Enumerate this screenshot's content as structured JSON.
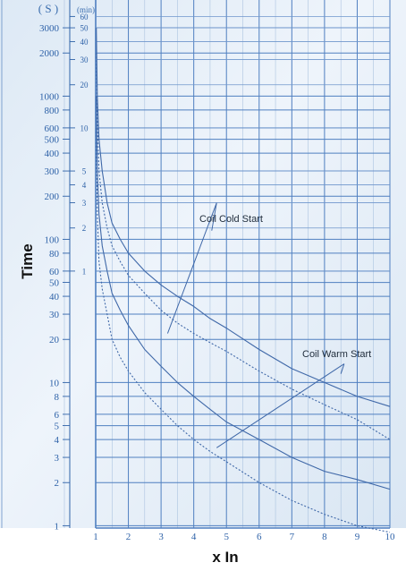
{
  "chart_data": {
    "type": "line",
    "title": "",
    "xlabel": "x In",
    "ylabel": "Time",
    "y_scale": "log",
    "xlim": [
      1,
      10
    ],
    "ylim": [
      0.9,
      5000
    ],
    "grid": true,
    "x_ticks": [
      "1",
      "2",
      "3",
      "4",
      "5",
      "6",
      "7",
      "8",
      "9",
      "10"
    ],
    "y_seconds_unit": "( S )",
    "y_minutes_unit": "(min)",
    "y_seconds_ticks": [
      {
        "label": "1",
        "value": 1
      },
      {
        "label": "2",
        "value": 2
      },
      {
        "label": "3",
        "value": 3
      },
      {
        "label": "4",
        "value": 4
      },
      {
        "label": "5",
        "value": 5
      },
      {
        "label": "6",
        "value": 6
      },
      {
        "label": "8",
        "value": 8
      },
      {
        "label": "10",
        "value": 10
      },
      {
        "label": "20",
        "value": 20
      },
      {
        "label": "30",
        "value": 30
      },
      {
        "label": "40",
        "value": 40
      },
      {
        "label": "50",
        "value": 50
      },
      {
        "label": "60",
        "value": 60
      },
      {
        "label": "80",
        "value": 80
      },
      {
        "label": "100",
        "value": 100
      },
      {
        "label": "200",
        "value": 200
      },
      {
        "label": "300",
        "value": 300
      },
      {
        "label": "400",
        "value": 400
      },
      {
        "label": "500",
        "value": 500
      },
      {
        "label": "600",
        "value": 600
      },
      {
        "label": "800",
        "value": 800
      },
      {
        "label": "1000",
        "value": 1000
      },
      {
        "label": "2000",
        "value": 2000
      },
      {
        "label": "3000",
        "value": 3000
      }
    ],
    "y_minutes_ticks": [
      {
        "label": "1",
        "value": 60
      },
      {
        "label": "2",
        "value": 120
      },
      {
        "label": "3",
        "value": 180
      },
      {
        "label": "4",
        "value": 240
      },
      {
        "label": "5",
        "value": 300
      },
      {
        "label": "10",
        "value": 600
      },
      {
        "label": "20",
        "value": 1200
      },
      {
        "label": "30",
        "value": 1800
      },
      {
        "label": "40",
        "value": 2400
      },
      {
        "label": "50",
        "value": 3000
      },
      {
        "label": "60",
        "value": 3600
      }
    ],
    "series": [
      {
        "style": "solid",
        "x": [
          1.02,
          1.05,
          1.1,
          1.2,
          1.35,
          1.5,
          1.75,
          2,
          2.5,
          3,
          3.5,
          4,
          4.5,
          5,
          6,
          7,
          8,
          9,
          10
        ],
        "y": [
          3000,
          1000,
          500,
          300,
          180,
          130,
          100,
          80,
          60,
          48,
          40,
          34,
          28,
          24,
          17,
          12.5,
          10,
          8,
          6.8
        ]
      },
      {
        "style": "dotted",
        "x": [
          1.02,
          1.05,
          1.1,
          1.2,
          1.35,
          1.5,
          1.75,
          2,
          2.5,
          3,
          3.5,
          4,
          4.5,
          5,
          6,
          7,
          8,
          9,
          10
        ],
        "y": [
          2000,
          700,
          300,
          180,
          120,
          90,
          70,
          56,
          42,
          32,
          26,
          22,
          19,
          16.5,
          12,
          9,
          7,
          5.5,
          4
        ]
      },
      {
        "style": "solid",
        "x": [
          1.02,
          1.05,
          1.1,
          1.2,
          1.35,
          1.5,
          1.75,
          2,
          2.5,
          3,
          3.5,
          4,
          4.5,
          5,
          6,
          7,
          8,
          9,
          10
        ],
        "y": [
          1000,
          300,
          150,
          90,
          60,
          42,
          32,
          25,
          17,
          13,
          10,
          8,
          6.5,
          5.3,
          4,
          3,
          2.4,
          2.1,
          1.8
        ]
      },
      {
        "style": "dotted",
        "x": [
          1.02,
          1.05,
          1.1,
          1.2,
          1.35,
          1.5,
          1.75,
          2,
          2.5,
          3,
          3.5,
          4,
          4.5,
          5,
          6,
          7,
          8,
          9,
          10
        ],
        "y": [
          600,
          150,
          70,
          45,
          30,
          20,
          15,
          12,
          8.5,
          6.5,
          5,
          4,
          3.3,
          2.8,
          2,
          1.5,
          1.2,
          1,
          0.9
        ]
      }
    ],
    "annotations": [
      {
        "text": "Coil Cold Start",
        "anchor": [
          4.7,
          180
        ],
        "targets": [
          [
            3.2,
            22
          ],
          [
            4.55,
            115
          ]
        ]
      },
      {
        "text": "Coil Warm Start",
        "anchor": [
          8.6,
          13.5
        ],
        "targets": [
          [
            4.7,
            3.5
          ],
          [
            8.5,
            11.5
          ]
        ]
      }
    ]
  }
}
